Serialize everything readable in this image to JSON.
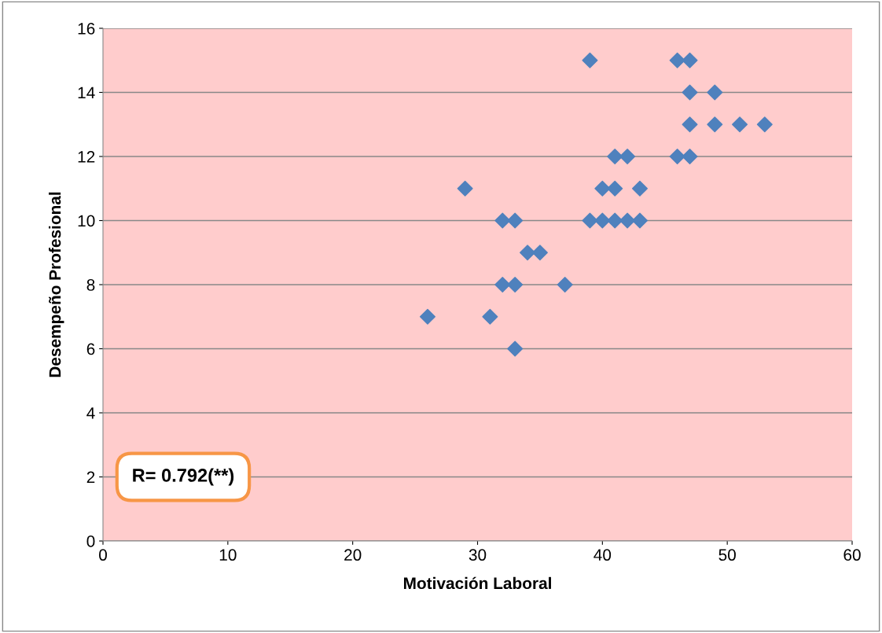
{
  "chart_data": {
    "type": "scatter",
    "xlabel": "Motivación Laboral",
    "ylabel": "Desempeño Profesional",
    "x": [
      26,
      29,
      31,
      32,
      32,
      33,
      33,
      33,
      34,
      35,
      37,
      39,
      39,
      40,
      40,
      41,
      41,
      41,
      42,
      42,
      43,
      43,
      46,
      47,
      47,
      49,
      47,
      49,
      51,
      53,
      46,
      47
    ],
    "series": [
      {
        "color": "#4f81bd",
        "values": [
          7,
          11,
          7,
          10,
          8,
          10,
          8,
          6,
          9,
          9,
          8,
          15,
          10,
          11,
          10,
          12,
          11,
          10,
          12,
          10,
          11,
          10,
          15,
          15,
          14,
          14,
          13,
          13,
          13,
          13,
          12,
          12
        ]
      }
    ],
    "xlim": [
      0,
      60
    ],
    "xticks": [
      0,
      10,
      20,
      30,
      40,
      50,
      60
    ],
    "ylim": [
      0,
      16
    ],
    "yticks": [
      0,
      2,
      4,
      6,
      8,
      10,
      12,
      14,
      16
    ],
    "grid": "y",
    "marker": "diamond",
    "legend": false,
    "annotations": [
      "R= 0.792(**)"
    ]
  }
}
